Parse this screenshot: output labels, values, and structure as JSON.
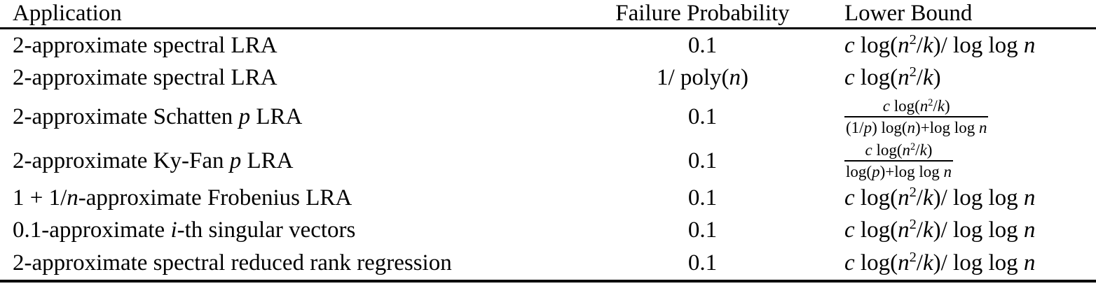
{
  "colors": {
    "background": "#ffffff",
    "text": "#000000",
    "rule": "#000000"
  },
  "table": {
    "header": {
      "application": "Application",
      "failure_probability": "Failure Probability",
      "lower_bound": "Lower Bound"
    },
    "rows": [
      {
        "application": [
          [
            "r",
            "2-approximate spectral LRA"
          ]
        ],
        "failure_probability": [
          [
            "r",
            "0.1"
          ]
        ],
        "lower_bound": [
          [
            "i",
            "c"
          ],
          [
            "r",
            " log("
          ],
          [
            "i",
            "n"
          ],
          [
            "sup",
            "2"
          ],
          [
            "r",
            "/"
          ],
          [
            "i",
            "k"
          ],
          [
            "r",
            ")/ log log "
          ],
          [
            "i",
            "n"
          ]
        ]
      },
      {
        "application": [
          [
            "r",
            "2-approximate spectral LRA"
          ]
        ],
        "failure_probability": [
          [
            "r",
            "1/ poly("
          ],
          [
            "i",
            "n"
          ],
          [
            "r",
            ")"
          ]
        ],
        "lower_bound": [
          [
            "i",
            "c"
          ],
          [
            "r",
            " log("
          ],
          [
            "i",
            "n"
          ],
          [
            "sup",
            "2"
          ],
          [
            "r",
            "/"
          ],
          [
            "i",
            "k"
          ],
          [
            "r",
            ")"
          ]
        ]
      },
      {
        "application": [
          [
            "r",
            "2-approximate Schatten "
          ],
          [
            "i",
            "p"
          ],
          [
            "r",
            " LRA"
          ]
        ],
        "failure_probability": [
          [
            "r",
            "0.1"
          ]
        ],
        "lower_bound": [
          [
            "frac",
            [
              [
                "i",
                "c"
              ],
              [
                "r",
                " log("
              ],
              [
                "i",
                "n"
              ],
              [
                "sup",
                "2"
              ],
              [
                "r",
                "/"
              ],
              [
                "i",
                "k"
              ],
              [
                "r",
                ")"
              ]
            ],
            [
              [
                "r",
                "(1/"
              ],
              [
                "i",
                "p"
              ],
              [
                "r",
                ") log("
              ],
              [
                "i",
                "n"
              ],
              [
                "r",
                ")+log log "
              ],
              [
                "i",
                "n"
              ]
            ]
          ]
        ]
      },
      {
        "application": [
          [
            "r",
            "2-approximate Ky-Fan "
          ],
          [
            "i",
            "p"
          ],
          [
            "r",
            " LRA"
          ]
        ],
        "failure_probability": [
          [
            "r",
            "0.1"
          ]
        ],
        "lower_bound": [
          [
            "frac",
            [
              [
                "i",
                "c"
              ],
              [
                "r",
                " log("
              ],
              [
                "i",
                "n"
              ],
              [
                "sup",
                "2"
              ],
              [
                "r",
                "/"
              ],
              [
                "i",
                "k"
              ],
              [
                "r",
                ")"
              ]
            ],
            [
              [
                "r",
                "log("
              ],
              [
                "i",
                "p"
              ],
              [
                "r",
                ")+log log "
              ],
              [
                "i",
                "n"
              ]
            ]
          ]
        ]
      },
      {
        "application": [
          [
            "r",
            "1 + 1/"
          ],
          [
            "i",
            "n"
          ],
          [
            "r",
            "-approximate Frobenius LRA"
          ]
        ],
        "failure_probability": [
          [
            "r",
            "0.1"
          ]
        ],
        "lower_bound": [
          [
            "i",
            "c"
          ],
          [
            "r",
            " log("
          ],
          [
            "i",
            "n"
          ],
          [
            "sup",
            "2"
          ],
          [
            "r",
            "/"
          ],
          [
            "i",
            "k"
          ],
          [
            "r",
            ")/ log log "
          ],
          [
            "i",
            "n"
          ]
        ]
      },
      {
        "application": [
          [
            "r",
            "0.1-approximate "
          ],
          [
            "i",
            "i"
          ],
          [
            "r",
            "-th singular vectors"
          ]
        ],
        "failure_probability": [
          [
            "r",
            "0.1"
          ]
        ],
        "lower_bound": [
          [
            "i",
            "c"
          ],
          [
            "r",
            " log("
          ],
          [
            "i",
            "n"
          ],
          [
            "sup",
            "2"
          ],
          [
            "r",
            "/"
          ],
          [
            "i",
            "k"
          ],
          [
            "r",
            ")/ log log "
          ],
          [
            "i",
            "n"
          ]
        ]
      },
      {
        "application": [
          [
            "r",
            "2-approximate spectral reduced rank regression"
          ]
        ],
        "failure_probability": [
          [
            "r",
            "0.1"
          ]
        ],
        "lower_bound": [
          [
            "i",
            "c"
          ],
          [
            "r",
            " log("
          ],
          [
            "i",
            "n"
          ],
          [
            "sup",
            "2"
          ],
          [
            "r",
            "/"
          ],
          [
            "i",
            "k"
          ],
          [
            "r",
            ")/ log log "
          ],
          [
            "i",
            "n"
          ]
        ]
      }
    ]
  }
}
